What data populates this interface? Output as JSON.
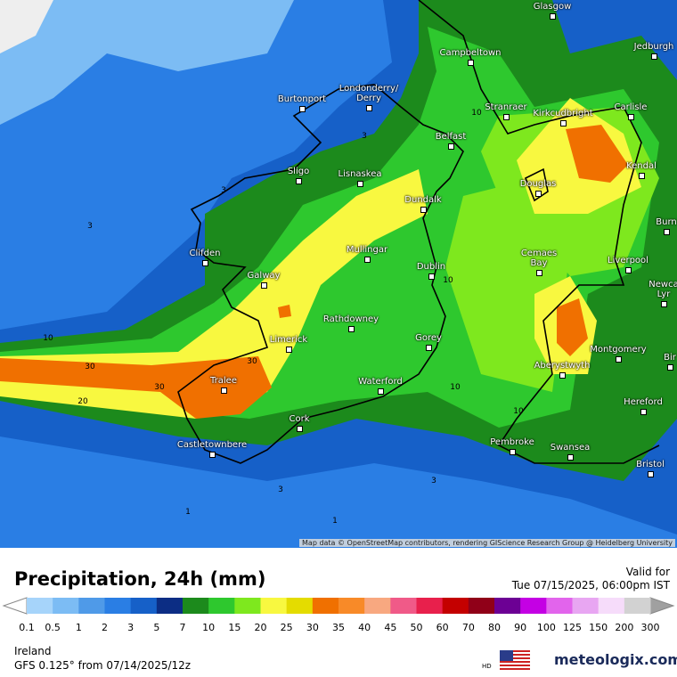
{
  "map": {
    "cities": [
      "Glasgow",
      "Jedburgh",
      "Campbeltown",
      "Burtonport",
      "Londonderry/\nDerry",
      "Stranraer",
      "Kirkcudbright",
      "Carlisle",
      "Belfast",
      "Sligo",
      "Lisnaskea",
      "Douglas",
      "Kendal",
      "Dundalk",
      "Burn",
      "Clifden",
      "Mullingar",
      "Dublin",
      "Cemaes\nBay",
      "Liverpool",
      "Galway",
      "Newca\nLyr",
      "Rathdowney",
      "Limerick",
      "Gorey",
      "Montgomery",
      "Bir",
      "Aberystwyth",
      "Tralee",
      "Waterford",
      "Hereford",
      "Cork",
      "Castletownbere",
      "Pembroke",
      "Swansea",
      "Bristol"
    ],
    "contour_labels": [
      "3",
      "3",
      "3",
      "10",
      "30",
      "30",
      "20",
      "30",
      "10",
      "10",
      "10",
      "10",
      "3",
      "3",
      "1",
      "1"
    ],
    "attribution": "Map data © OpenStreetMap contributors, rendering GIScience Research Group @ Heidelberg University"
  },
  "header": {
    "title": "Precipitation, 24h (mm)",
    "valid_label": "Valid for",
    "valid_time": "Tue 07/15/2025, 06:00pm IST"
  },
  "legend": {
    "values": [
      0.1,
      0.5,
      1,
      2,
      3,
      5,
      7,
      10,
      15,
      20,
      25,
      30,
      35,
      40,
      45,
      50,
      60,
      70,
      80,
      90,
      100,
      125,
      150,
      200,
      300
    ],
    "colors": [
      "#a6d4fa",
      "#7cbcf4",
      "#4f9ae8",
      "#2a7ee4",
      "#1660c8",
      "#0c2d84",
      "#1c8a1c",
      "#2ec82e",
      "#7ee81e",
      "#f8f840",
      "#e4dc00",
      "#f07000",
      "#f88a28",
      "#f8a880",
      "#f05a88",
      "#e8204c",
      "#c40000",
      "#900018",
      "#6c0094",
      "#c400e4",
      "#e264ec",
      "#e8a6f2",
      "#f6dcfa",
      "#d2d2d2"
    ]
  },
  "footer": {
    "region": "Ireland",
    "model": "GFS 0.125° from 07/14/2025/12z",
    "hd": "HD",
    "brand": "meteologix.com"
  }
}
